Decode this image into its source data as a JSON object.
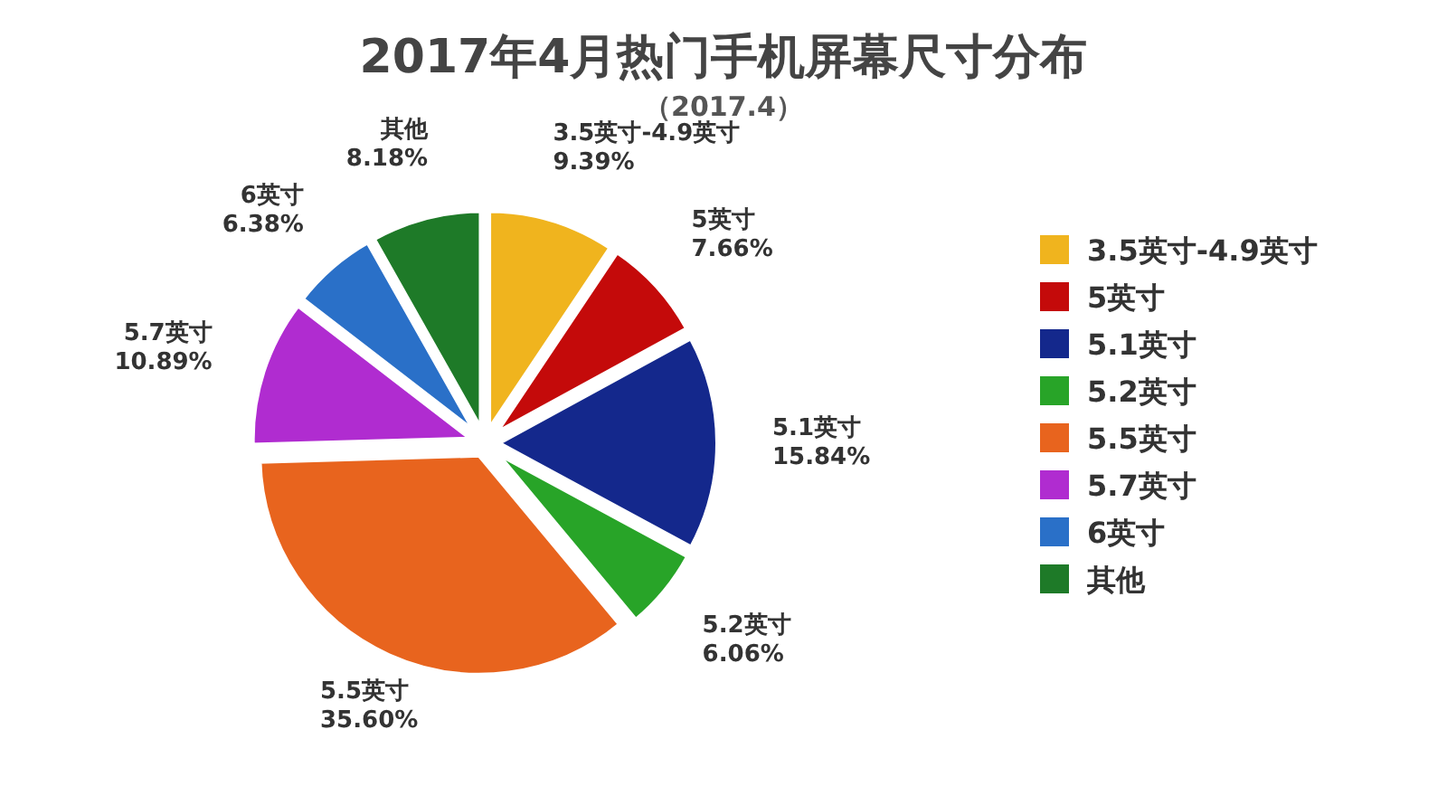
{
  "chart_data": {
    "type": "pie",
    "title": "2017年4月热门手机屏幕尺寸分布",
    "subtitle": "（2017.4）",
    "categories": [
      "3.5英寸-4.9英寸",
      "5英寸",
      "5.1英寸",
      "5.2英寸",
      "5.5英寸",
      "5.7英寸",
      "6英寸",
      "其他"
    ],
    "values": [
      9.39,
      7.66,
      15.84,
      6.06,
      35.6,
      10.89,
      6.38,
      8.18
    ],
    "colors": [
      "#f0b41e",
      "#c40a0a",
      "#14288c",
      "#28a428",
      "#e8641e",
      "#b02cd0",
      "#2a70c8",
      "#1e7a28"
    ],
    "value_labels": [
      "9.39%",
      "7.66%",
      "15.84%",
      "6.06%",
      "35.60%",
      "10.89%",
      "6.38%",
      "8.18%"
    ],
    "legend": "right"
  }
}
